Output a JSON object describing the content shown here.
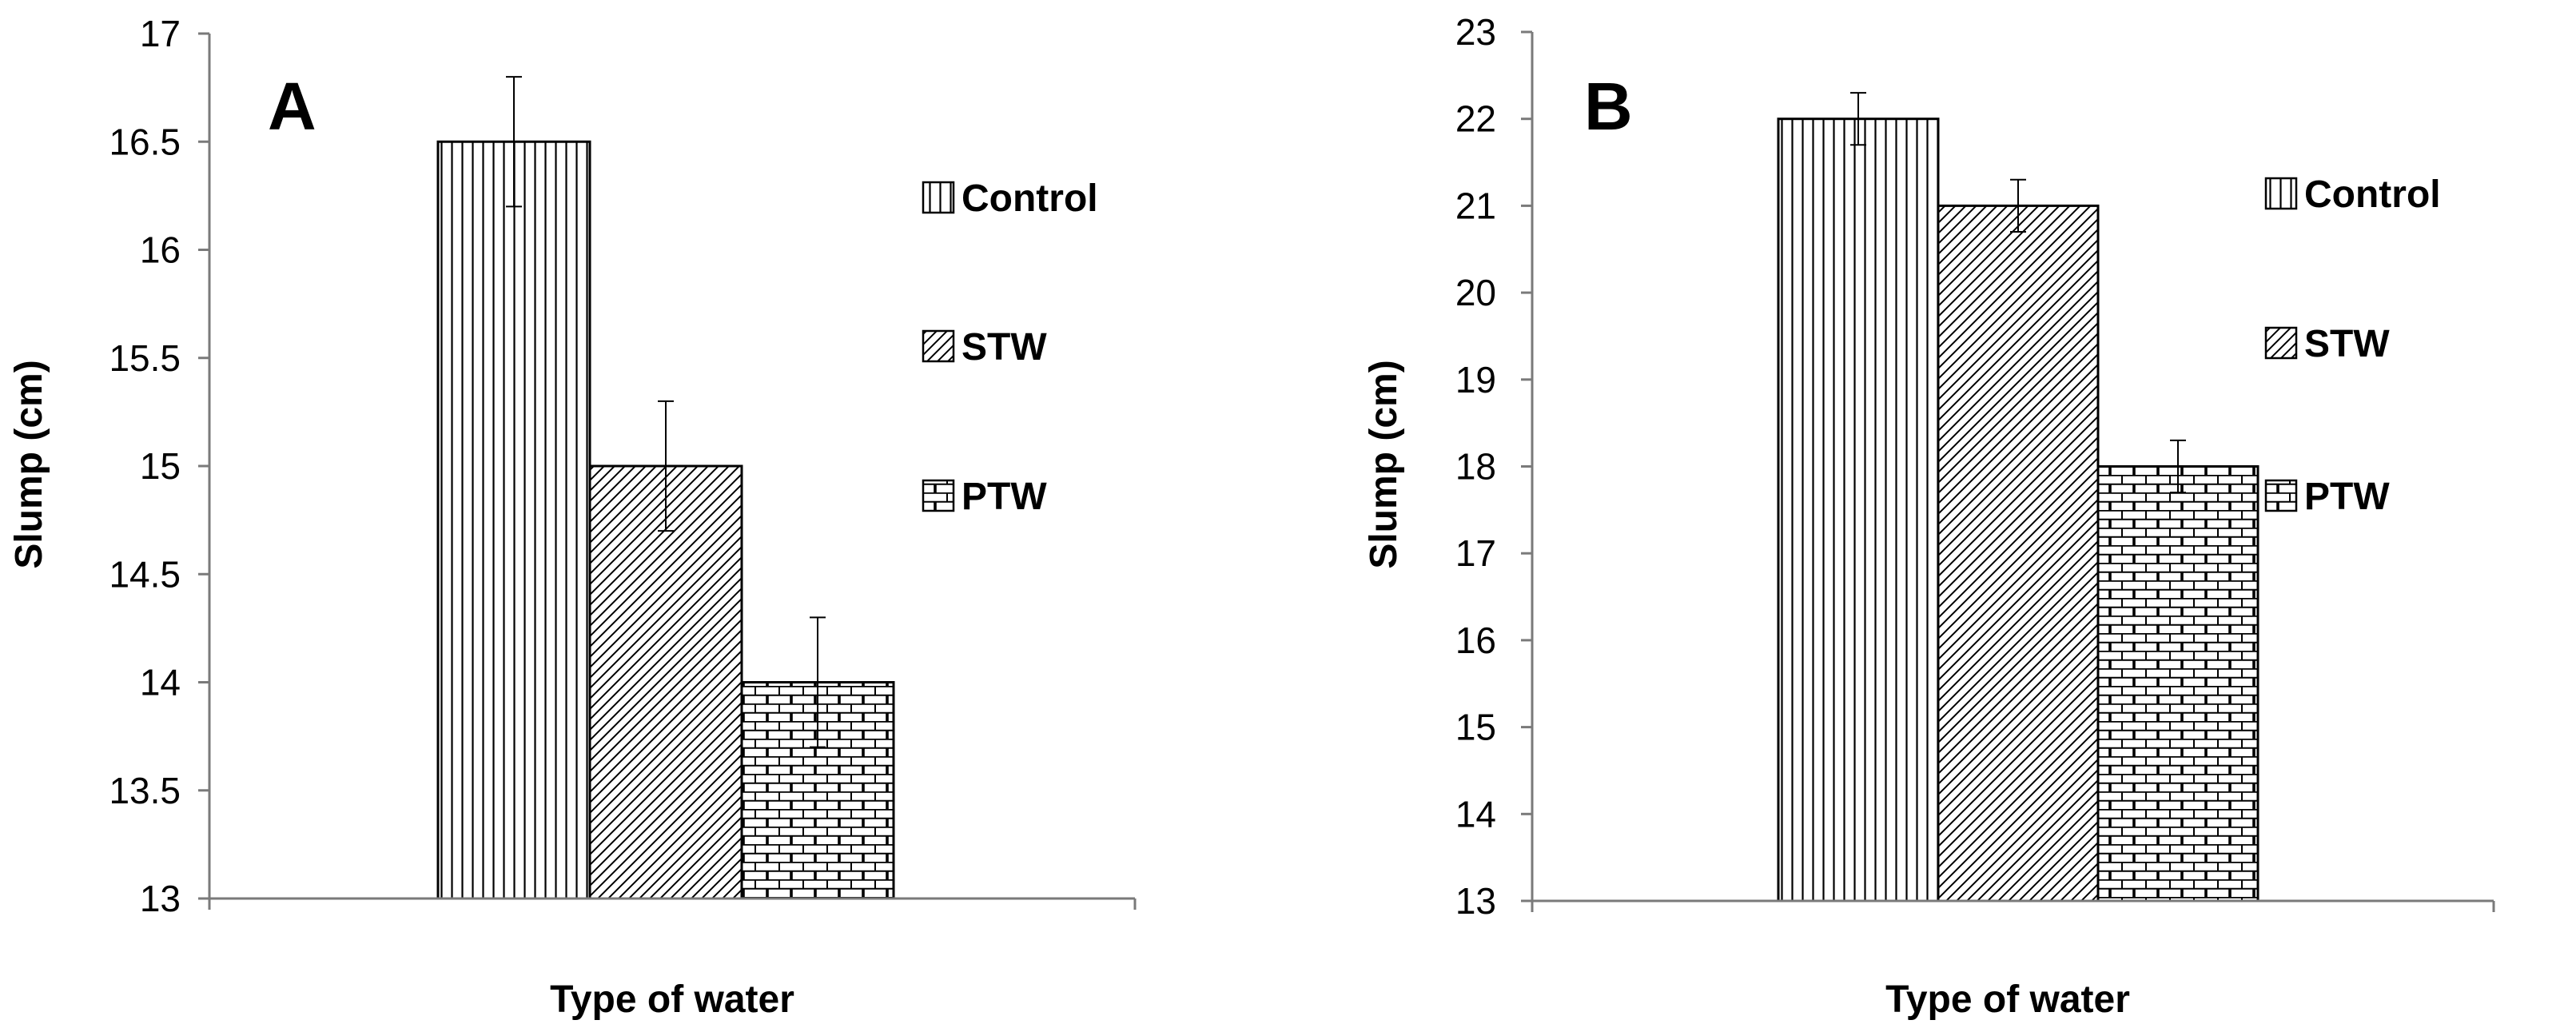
{
  "chart_data": [
    {
      "type": "bar",
      "panel_label": "A",
      "xlabel": "Type of water",
      "ylabel": "Slump (cm)",
      "ylim": [
        13,
        17
      ],
      "ytick_step": 0.5,
      "yticks": [
        "13",
        "13.5",
        "14",
        "14.5",
        "15",
        "15.5",
        "16",
        "16.5",
        "17"
      ],
      "grid": false,
      "legend_position": "right",
      "series": [
        {
          "name": "Control",
          "value": 16.5,
          "error": 0.3,
          "pattern": "vertical"
        },
        {
          "name": "STW",
          "value": 15.0,
          "error": 0.3,
          "pattern": "diagonal"
        },
        {
          "name": "PTW",
          "value": 14.0,
          "error": 0.3,
          "pattern": "brick"
        }
      ]
    },
    {
      "type": "bar",
      "panel_label": "B",
      "xlabel": "Type of water",
      "ylabel": "Slump (cm)",
      "ylim": [
        13,
        23
      ],
      "ytick_step": 1,
      "yticks": [
        "13",
        "14",
        "15",
        "16",
        "17",
        "18",
        "19",
        "20",
        "21",
        "22",
        "23"
      ],
      "grid": false,
      "legend_position": "right",
      "series": [
        {
          "name": "Control",
          "value": 22.0,
          "error": 0.3,
          "pattern": "vertical"
        },
        {
          "name": "STW",
          "value": 21.0,
          "error": 0.3,
          "pattern": "diagonal"
        },
        {
          "name": "PTW",
          "value": 18.0,
          "error": 0.3,
          "pattern": "brick"
        }
      ]
    }
  ]
}
